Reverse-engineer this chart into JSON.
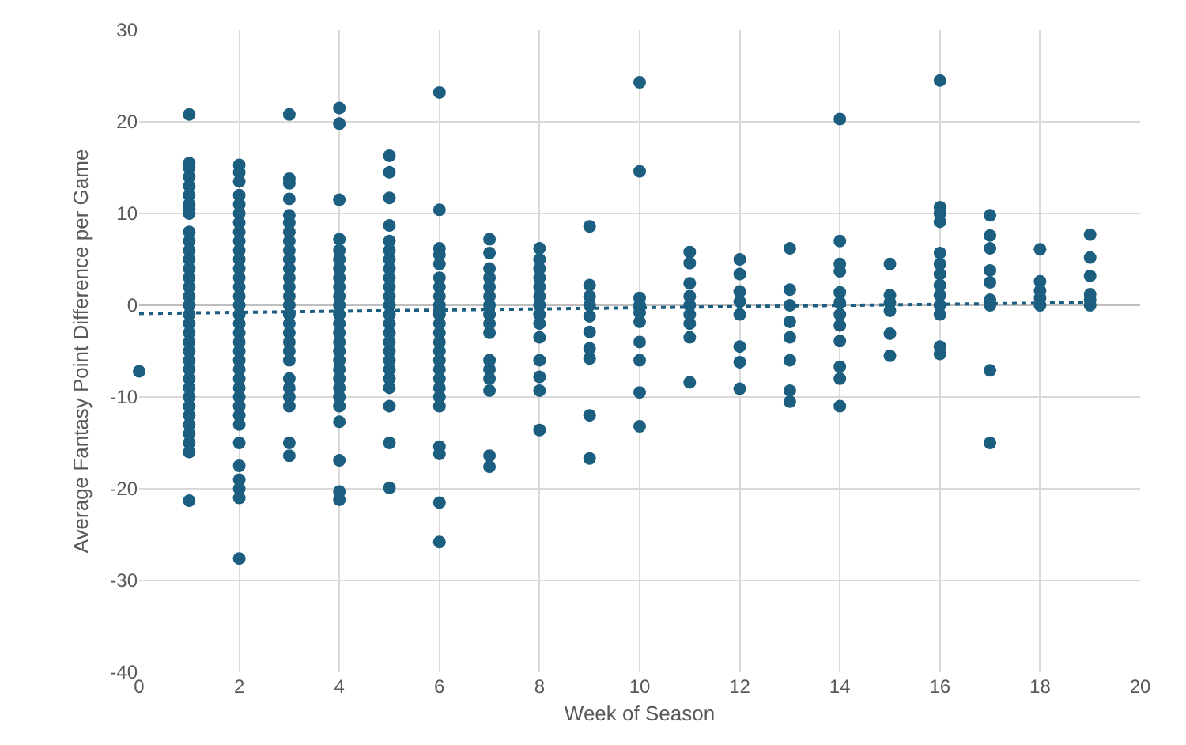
{
  "chart_data": {
    "type": "scatter",
    "xlabel": "Week of Season",
    "ylabel": "Average Fantasy Point Difference per Game",
    "xlim": [
      0,
      20
    ],
    "xticks": [
      0,
      2,
      4,
      6,
      8,
      10,
      12,
      14,
      16,
      18,
      20
    ],
    "ylim": [
      -40,
      30
    ],
    "yticks": [
      -40,
      -30,
      -20,
      -10,
      0,
      10,
      20,
      30
    ],
    "grid": true,
    "marker": "circle",
    "series": [
      {
        "type": "scatter",
        "color": "#1b5e7f",
        "x": [
          0,
          1,
          1,
          1,
          1,
          1,
          1,
          1,
          1,
          1,
          1,
          1,
          1,
          1,
          1,
          1,
          1,
          1,
          1,
          1,
          1,
          1,
          1,
          1,
          1,
          1,
          1,
          1,
          1,
          1,
          1,
          1,
          1,
          1,
          1,
          1,
          2,
          2,
          2,
          2,
          2,
          2,
          2,
          2,
          2,
          2,
          2,
          2,
          2,
          2,
          2,
          2,
          2,
          2,
          2,
          2,
          2,
          2,
          2,
          2,
          2,
          2,
          2,
          2,
          2,
          2,
          2,
          2,
          2,
          2,
          2,
          3,
          3,
          3,
          3,
          3,
          3,
          3,
          3,
          3,
          3,
          3,
          3,
          3,
          3,
          3,
          3,
          3,
          3,
          3,
          3,
          3,
          3,
          3,
          3,
          3,
          3,
          3,
          4,
          4,
          4,
          4,
          4,
          4,
          4,
          4,
          4,
          4,
          4,
          4,
          4,
          4,
          4,
          4,
          4,
          4,
          4,
          4,
          4,
          4,
          4,
          4,
          4,
          4,
          5,
          5,
          5,
          5,
          5,
          5,
          5,
          5,
          5,
          5,
          5,
          5,
          5,
          5,
          5,
          5,
          5,
          5,
          5,
          5,
          5,
          5,
          5,
          5,
          6,
          6,
          6,
          6,
          6,
          6,
          6,
          6,
          6,
          6,
          6,
          6,
          6,
          6,
          6,
          6,
          6,
          6,
          6,
          6,
          6,
          6,
          6,
          6,
          7,
          7,
          7,
          7,
          7,
          7,
          7,
          7,
          7,
          7,
          7,
          7,
          7,
          7,
          7,
          7,
          8,
          8,
          8,
          8,
          8,
          8,
          8,
          8,
          8,
          8,
          8,
          8,
          8,
          8,
          9,
          9,
          9,
          9,
          9,
          9,
          9,
          9,
          9,
          9,
          10,
          10,
          10,
          10,
          10,
          10,
          10,
          10,
          10,
          10,
          11,
          11,
          11,
          11,
          11,
          11,
          11,
          11,
          11,
          12,
          12,
          12,
          12,
          12,
          12,
          12,
          12,
          13,
          13,
          13,
          13,
          13,
          13,
          13,
          13,
          14,
          14,
          14,
          14,
          14,
          14,
          14,
          14,
          14,
          14,
          14,
          14,
          15,
          15,
          15,
          15,
          15,
          15,
          16,
          16,
          16,
          16,
          16,
          16,
          16,
          16,
          16,
          16,
          16,
          16,
          16,
          17,
          17,
          17,
          17,
          17,
          17,
          17,
          17,
          17,
          18,
          18,
          18,
          18,
          18,
          19,
          19,
          19,
          19,
          19,
          19
        ],
        "values": [
          -7.2,
          20.8,
          15.5,
          15,
          14,
          13,
          12,
          11,
          10.5,
          10,
          8,
          7,
          6,
          5,
          4,
          3,
          2,
          1,
          0,
          -1,
          -2,
          -3,
          -4,
          -5,
          -6,
          -7,
          -8,
          -9,
          -10,
          -11,
          -12,
          -13,
          -14,
          -15,
          -16,
          -21.3,
          15.3,
          14.5,
          13.5,
          12,
          11,
          10,
          9,
          8,
          7,
          6,
          5,
          4,
          3,
          2,
          1,
          0,
          -1,
          -2,
          -3,
          -4,
          -5,
          -6,
          -7,
          -8,
          -9,
          -10,
          -11,
          -12,
          -13,
          -15,
          -17.5,
          -19,
          -20,
          -21,
          -27.6,
          20.8,
          13.8,
          13.3,
          11.6,
          9.8,
          9,
          8,
          7,
          6,
          5,
          4,
          3,
          2,
          1,
          0,
          -1,
          -2,
          -3,
          -4,
          -5,
          -6,
          -8,
          -9,
          -10,
          -11,
          -15,
          -16.4,
          21.5,
          19.8,
          11.5,
          7.2,
          6,
          5,
          4,
          3,
          2,
          1,
          0,
          -1,
          -2,
          -3,
          -4,
          -5,
          -6,
          -7,
          -8,
          -9,
          -10,
          -11,
          -12.7,
          -16.9,
          -20.3,
          -21.2,
          16.3,
          14.5,
          11.7,
          8.7,
          7,
          6,
          5,
          4,
          3,
          2,
          1,
          0,
          -1,
          -2,
          -3,
          -4,
          -5,
          -6,
          -7,
          -8,
          -9,
          -11,
          -15,
          -19.9,
          23.2,
          10.4,
          6.2,
          5.5,
          4.5,
          3,
          2,
          1,
          0,
          -1,
          -2,
          -3,
          -4,
          -5,
          -6,
          -7,
          -8,
          -9,
          -10,
          -11,
          -15.4,
          -16.2,
          -21.5,
          -25.8,
          7.2,
          5.7,
          4,
          3,
          2,
          1,
          0,
          -1,
          -2,
          -3,
          -6,
          -7,
          -8,
          -9.3,
          -16.4,
          -17.6,
          6.2,
          5,
          4,
          3,
          2,
          1,
          0,
          -1,
          -2,
          -3.5,
          -6,
          -7.8,
          -9.3,
          -13.6,
          8.6,
          2.2,
          1,
          0,
          -1.2,
          -2.9,
          -4.7,
          -5.8,
          -12,
          -16.7,
          24.3,
          14.6,
          0.8,
          0,
          -0.8,
          -1.8,
          -4,
          -6,
          -9.5,
          -13.2,
          5.8,
          4.6,
          2.4,
          1,
          0,
          -1,
          -2,
          -3.5,
          -8.4,
          5,
          3.4,
          1.5,
          0.4,
          -1,
          -4.5,
          -6.2,
          -9.1,
          6.2,
          1.7,
          0,
          -1.8,
          -3.5,
          -6,
          -9.3,
          -10.5,
          20.3,
          7,
          4.5,
          3.7,
          1.4,
          0.3,
          -1,
          -2.2,
          -3.9,
          -6.7,
          -8,
          -11,
          4.5,
          1.1,
          0.3,
          -0.6,
          -3.1,
          -5.5,
          24.5,
          10.7,
          10,
          9.1,
          5.7,
          4.5,
          3.4,
          2.2,
          1.1,
          0,
          -1,
          -4.5,
          -5.3,
          9.8,
          7.6,
          6.2,
          3.8,
          2.5,
          0.6,
          0,
          -7.1,
          -15,
          6.1,
          2.6,
          1.6,
          0.8,
          0,
          7.7,
          5.2,
          3.2,
          1.2,
          0.6,
          0
        ]
      },
      {
        "type": "line",
        "color": "#1b5e7f",
        "line_style": "dotted",
        "marker": "none",
        "x": [
          0,
          19
        ],
        "values": [
          -0.9,
          0.3
        ]
      }
    ]
  }
}
